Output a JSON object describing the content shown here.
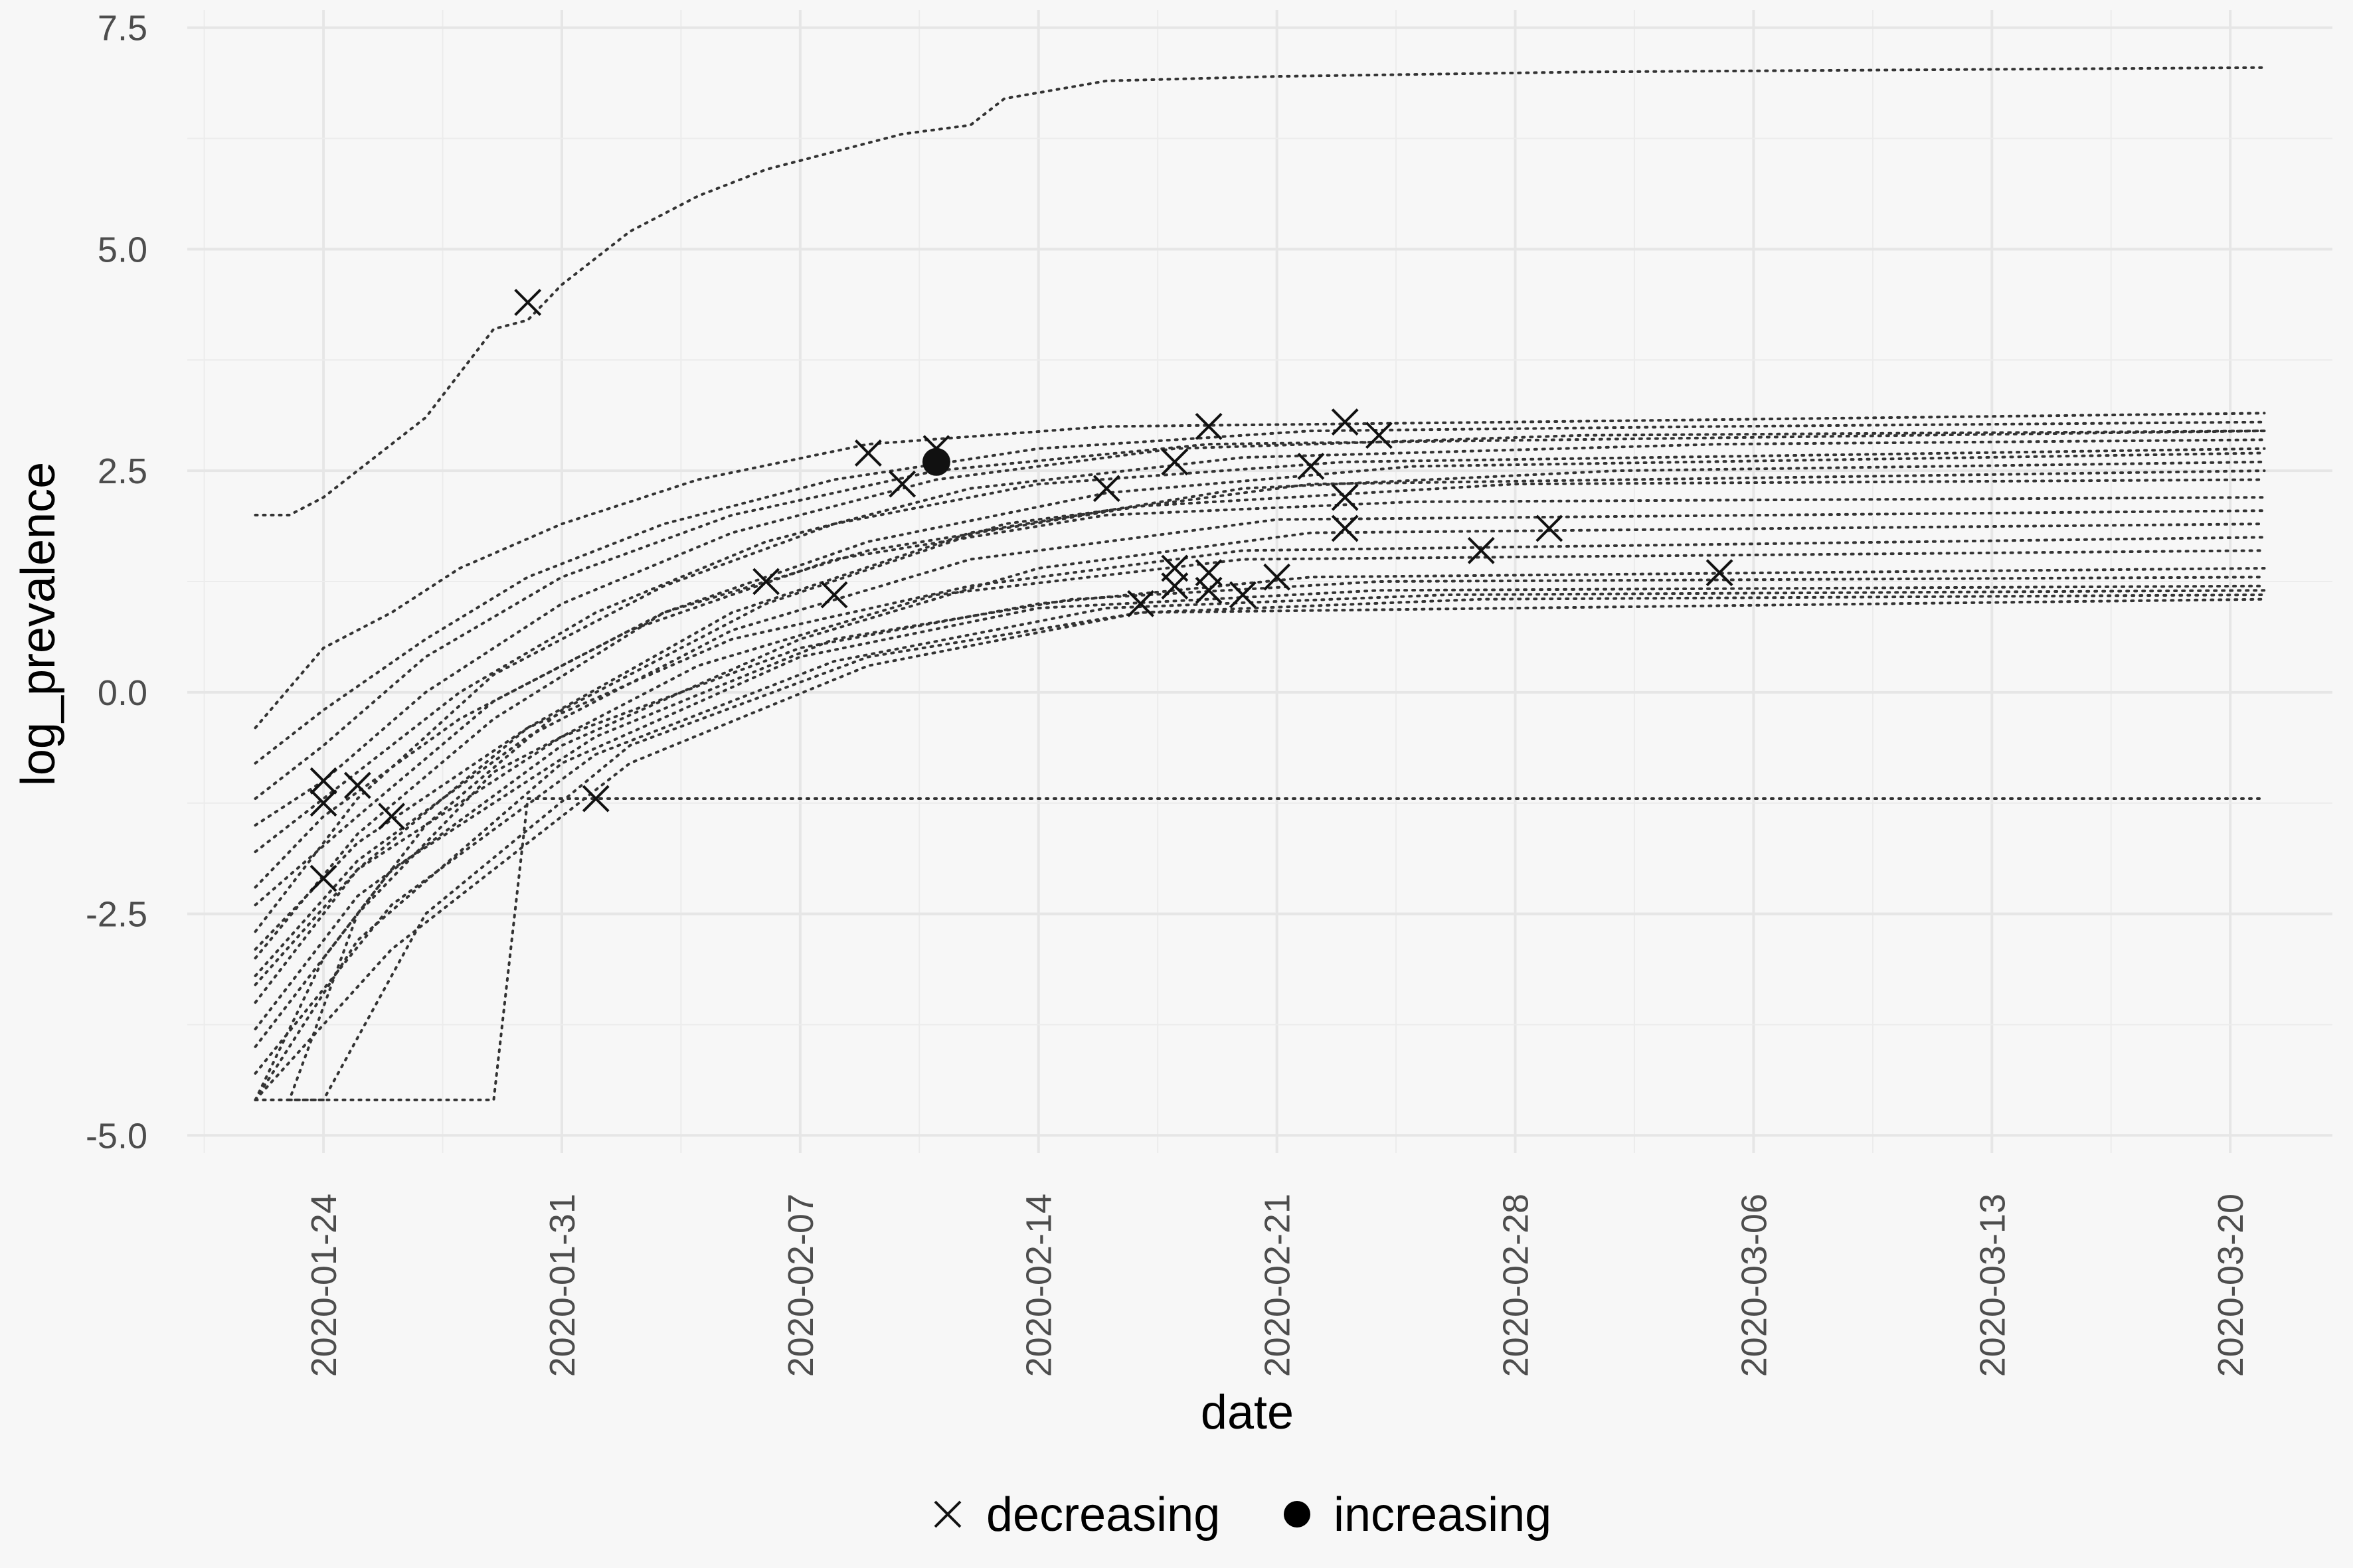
{
  "chart_data": {
    "type": "scatter",
    "xlabel": "date",
    "ylabel": "log_prevalence",
    "xlim": [
      "2020-01-20",
      "2020-03-23"
    ],
    "ylim": [
      -5.2,
      7.7
    ],
    "x_ticks": [
      "2020-01-24",
      "2020-01-31",
      "2020-02-07",
      "2020-02-14",
      "2020-02-21",
      "2020-02-28",
      "2020-03-06",
      "2020-03-13",
      "2020-03-20"
    ],
    "y_ticks": [
      {
        "value": -5.0,
        "label": "-5.0"
      },
      {
        "value": -2.5,
        "label": "-2.5"
      },
      {
        "value": 0.0,
        "label": "0.0"
      },
      {
        "value": 2.5,
        "label": "2.5"
      },
      {
        "value": 5.0,
        "label": "5.0"
      },
      {
        "value": 7.5,
        "label": "7.5"
      }
    ],
    "grid": true,
    "legend": {
      "position": "bottom",
      "entries": [
        {
          "label": "decreasing",
          "shape": "cross"
        },
        {
          "label": "increasing",
          "shape": "dot"
        }
      ]
    },
    "line_color": "#333333",
    "point_color": "#111111",
    "lines": [
      {
        "points": [
          [
            "2020-01-22",
            2.0
          ],
          [
            "2020-01-23",
            2.0
          ],
          [
            "2020-01-24",
            2.2
          ],
          [
            "2020-01-25",
            2.5
          ],
          [
            "2020-01-26",
            2.8
          ],
          [
            "2020-01-27",
            3.1
          ],
          [
            "2020-01-28",
            3.6
          ],
          [
            "2020-01-29",
            4.1
          ],
          [
            "2020-01-30",
            4.2
          ],
          [
            "2020-01-31",
            4.6
          ],
          [
            "2020-02-02",
            5.2
          ],
          [
            "2020-02-04",
            5.6
          ],
          [
            "2020-02-06",
            5.9
          ],
          [
            "2020-02-08",
            6.1
          ],
          [
            "2020-02-10",
            6.3
          ],
          [
            "2020-02-12",
            6.4
          ],
          [
            "2020-02-13",
            6.7
          ],
          [
            "2020-02-16",
            6.9
          ],
          [
            "2020-02-21",
            6.95
          ],
          [
            "2020-03-01",
            7.0
          ],
          [
            "2020-03-21",
            7.05
          ]
        ]
      },
      {
        "points": [
          [
            "2020-01-22",
            -4.6
          ],
          [
            "2020-01-24",
            -4.6
          ],
          [
            "2020-01-29",
            -4.6
          ],
          [
            "2020-01-30",
            -1.2
          ],
          [
            "2020-02-15",
            -1.2
          ],
          [
            "2020-03-21",
            -1.2
          ]
        ]
      },
      {
        "points": [
          [
            "2020-01-22",
            -0.4
          ],
          [
            "2020-01-24",
            0.5
          ],
          [
            "2020-01-26",
            0.9
          ],
          [
            "2020-01-28",
            1.4
          ],
          [
            "2020-01-31",
            1.9
          ],
          [
            "2020-02-04",
            2.4
          ],
          [
            "2020-02-09",
            2.8
          ],
          [
            "2020-02-16",
            3.0
          ],
          [
            "2020-02-28",
            3.05
          ],
          [
            "2020-03-21",
            3.15
          ]
        ]
      },
      {
        "points": [
          [
            "2020-01-22",
            -0.8
          ],
          [
            "2020-01-24",
            -0.2
          ],
          [
            "2020-01-27",
            0.6
          ],
          [
            "2020-01-30",
            1.3
          ],
          [
            "2020-02-03",
            1.9
          ],
          [
            "2020-02-08",
            2.4
          ],
          [
            "2020-02-14",
            2.75
          ],
          [
            "2020-02-22",
            2.95
          ],
          [
            "2020-03-05",
            3.0
          ],
          [
            "2020-03-21",
            3.05
          ]
        ]
      },
      {
        "points": [
          [
            "2020-01-22",
            -1.5
          ],
          [
            "2020-01-24",
            -1.0
          ],
          [
            "2020-01-27",
            0.0
          ],
          [
            "2020-01-31",
            1.0
          ],
          [
            "2020-02-05",
            1.8
          ],
          [
            "2020-02-11",
            2.4
          ],
          [
            "2020-02-18",
            2.75
          ],
          [
            "2020-03-01",
            2.9
          ],
          [
            "2020-03-21",
            2.95
          ]
        ]
      },
      {
        "points": [
          [
            "2020-01-22",
            -1.8
          ],
          [
            "2020-01-24",
            -1.2
          ],
          [
            "2020-01-28",
            0.0
          ],
          [
            "2020-02-01",
            0.9
          ],
          [
            "2020-02-06",
            1.7
          ],
          [
            "2020-02-12",
            2.3
          ],
          [
            "2020-02-20",
            2.65
          ],
          [
            "2020-03-05",
            2.8
          ],
          [
            "2020-03-21",
            2.85
          ]
        ]
      },
      {
        "points": [
          [
            "2020-01-22",
            -2.7
          ],
          [
            "2020-01-25",
            -1.2
          ],
          [
            "2020-01-29",
            0.2
          ],
          [
            "2020-02-03",
            1.2
          ],
          [
            "2020-02-08",
            1.9
          ],
          [
            "2020-02-14",
            2.35
          ],
          [
            "2020-02-23",
            2.6
          ],
          [
            "2020-03-21",
            2.75
          ]
        ]
      },
      {
        "points": [
          [
            "2020-01-22",
            -3.0
          ],
          [
            "2020-01-25",
            -1.6
          ],
          [
            "2020-01-29",
            -0.3
          ],
          [
            "2020-02-03",
            0.9
          ],
          [
            "2020-02-09",
            1.7
          ],
          [
            "2020-02-16",
            2.25
          ],
          [
            "2020-02-25",
            2.55
          ],
          [
            "2020-03-21",
            2.7
          ]
        ]
      },
      {
        "points": [
          [
            "2020-01-22",
            -3.5
          ],
          [
            "2020-01-25",
            -2.0
          ],
          [
            "2020-01-30",
            -0.4
          ],
          [
            "2020-02-05",
            0.9
          ],
          [
            "2020-02-12",
            1.8
          ],
          [
            "2020-02-20",
            2.3
          ],
          [
            "2020-03-02",
            2.5
          ],
          [
            "2020-03-21",
            2.6
          ]
        ]
      },
      {
        "points": [
          [
            "2020-01-22",
            -4.6
          ],
          [
            "2020-01-24",
            -3.0
          ],
          [
            "2020-01-27",
            -1.5
          ],
          [
            "2020-01-31",
            -0.2
          ],
          [
            "2020-02-06",
            1.0
          ],
          [
            "2020-02-13",
            1.9
          ],
          [
            "2020-02-22",
            2.35
          ],
          [
            "2020-03-21",
            2.5
          ]
        ]
      },
      {
        "points": [
          [
            "2020-01-22",
            -2.2
          ],
          [
            "2020-01-24",
            -1.4
          ],
          [
            "2020-01-28",
            -0.3
          ],
          [
            "2020-02-02",
            0.7
          ],
          [
            "2020-02-08",
            1.5
          ],
          [
            "2020-02-16",
            2.0
          ],
          [
            "2020-02-25",
            2.15
          ],
          [
            "2020-03-21",
            2.2
          ]
        ]
      },
      {
        "points": [
          [
            "2020-01-22",
            -3.2
          ],
          [
            "2020-01-25",
            -1.9
          ],
          [
            "2020-01-30",
            -0.5
          ],
          [
            "2020-02-05",
            0.7
          ],
          [
            "2020-02-12",
            1.5
          ],
          [
            "2020-02-21",
            1.95
          ],
          [
            "2020-03-21",
            2.05
          ]
        ]
      },
      {
        "points": [
          [
            "2020-01-22",
            -3.8
          ],
          [
            "2020-01-25",
            -2.3
          ],
          [
            "2020-01-31",
            -0.6
          ],
          [
            "2020-02-07",
            0.6
          ],
          [
            "2020-02-14",
            1.4
          ],
          [
            "2020-02-22",
            1.8
          ],
          [
            "2020-03-21",
            1.9
          ]
        ]
      },
      {
        "points": [
          [
            "2020-01-22",
            -2.9
          ],
          [
            "2020-01-25",
            -1.7
          ],
          [
            "2020-01-30",
            -0.4
          ],
          [
            "2020-02-05",
            0.6
          ],
          [
            "2020-02-12",
            1.2
          ],
          [
            "2020-02-20",
            1.6
          ],
          [
            "2020-03-21",
            1.75
          ]
        ]
      },
      {
        "points": [
          [
            "2020-01-22",
            -4.6
          ],
          [
            "2020-01-23",
            -4.6
          ],
          [
            "2020-01-25",
            -2.5
          ],
          [
            "2020-01-29",
            -0.9
          ],
          [
            "2020-02-04",
            0.3
          ],
          [
            "2020-02-11",
            1.1
          ],
          [
            "2020-02-20",
            1.5
          ],
          [
            "2020-03-21",
            1.6
          ]
        ]
      },
      {
        "points": [
          [
            "2020-01-22",
            -3.3
          ],
          [
            "2020-01-25",
            -2.0
          ],
          [
            "2020-01-31",
            -0.5
          ],
          [
            "2020-02-07",
            0.5
          ],
          [
            "2020-02-14",
            1.0
          ],
          [
            "2020-02-22",
            1.3
          ],
          [
            "2020-03-21",
            1.4
          ]
        ]
      },
      {
        "points": [
          [
            "2020-01-22",
            -4.0
          ],
          [
            "2020-01-26",
            -2.0
          ],
          [
            "2020-02-01",
            -0.5
          ],
          [
            "2020-02-08",
            0.6
          ],
          [
            "2020-02-15",
            1.05
          ],
          [
            "2020-02-24",
            1.25
          ],
          [
            "2020-03-21",
            1.3
          ]
        ]
      },
      {
        "points": [
          [
            "2020-01-22",
            -4.6
          ],
          [
            "2020-01-25",
            -2.8
          ],
          [
            "2020-01-31",
            -0.8
          ],
          [
            "2020-02-07",
            0.4
          ],
          [
            "2020-02-14",
            0.95
          ],
          [
            "2020-02-24",
            1.15
          ],
          [
            "2020-03-21",
            1.2
          ]
        ]
      },
      {
        "points": [
          [
            "2020-01-22",
            -4.3
          ],
          [
            "2020-01-26",
            -2.4
          ],
          [
            "2020-02-01",
            -0.7
          ],
          [
            "2020-02-08",
            0.35
          ],
          [
            "2020-02-16",
            0.95
          ],
          [
            "2020-02-26",
            1.1
          ],
          [
            "2020-03-21",
            1.15
          ]
        ]
      },
      {
        "points": [
          [
            "2020-01-22",
            -4.6
          ],
          [
            "2020-01-26",
            -2.9
          ],
          [
            "2020-02-02",
            -0.8
          ],
          [
            "2020-02-09",
            0.3
          ],
          [
            "2020-02-17",
            0.9
          ],
          [
            "2020-02-27",
            1.05
          ],
          [
            "2020-03-21",
            1.1
          ]
        ]
      },
      {
        "points": [
          [
            "2020-01-23",
            -4.6
          ],
          [
            "2020-01-24",
            -4.6
          ],
          [
            "2020-01-27",
            -2.5
          ],
          [
            "2020-02-02",
            -0.6
          ],
          [
            "2020-02-09",
            0.4
          ],
          [
            "2020-02-17",
            0.9
          ],
          [
            "2020-03-21",
            1.05
          ]
        ]
      },
      {
        "points": [
          [
            "2020-01-22",
            -2.4
          ],
          [
            "2020-01-25",
            -1.4
          ],
          [
            "2020-01-29",
            -0.1
          ],
          [
            "2020-02-03",
            0.9
          ],
          [
            "2020-02-09",
            1.6
          ],
          [
            "2020-02-17",
            2.1
          ],
          [
            "2020-02-28",
            2.35
          ],
          [
            "2020-03-21",
            2.4
          ]
        ]
      },
      {
        "points": [
          [
            "2020-01-22",
            -1.2
          ],
          [
            "2020-01-24",
            -0.6
          ],
          [
            "2020-01-27",
            0.4
          ],
          [
            "2020-01-31",
            1.3
          ],
          [
            "2020-02-05",
            2.0
          ],
          [
            "2020-02-11",
            2.5
          ],
          [
            "2020-02-19",
            2.8
          ],
          [
            "2020-03-21",
            2.95
          ]
        ]
      }
    ],
    "points": {
      "decreasing": [
        [
          "2020-01-24",
          -1.0
        ],
        [
          "2020-01-24",
          -1.25
        ],
        [
          "2020-01-24",
          -2.1
        ],
        [
          "2020-01-25",
          -1.05
        ],
        [
          "2020-01-26",
          -1.4
        ],
        [
          "2020-01-30",
          4.4
        ],
        [
          "2020-02-01",
          -1.2
        ],
        [
          "2020-02-06",
          1.25
        ],
        [
          "2020-02-08",
          1.1
        ],
        [
          "2020-02-09",
          2.7
        ],
        [
          "2020-02-10",
          2.35
        ],
        [
          "2020-02-11",
          2.75
        ],
        [
          "2020-02-16",
          2.3
        ],
        [
          "2020-02-17",
          1.0
        ],
        [
          "2020-02-18",
          2.6
        ],
        [
          "2020-02-18",
          1.4
        ],
        [
          "2020-02-18",
          1.2
        ],
        [
          "2020-02-19",
          3.0
        ],
        [
          "2020-02-19",
          1.35
        ],
        [
          "2020-02-19",
          1.15
        ],
        [
          "2020-02-20",
          1.1
        ],
        [
          "2020-02-21",
          1.3
        ],
        [
          "2020-02-22",
          2.55
        ],
        [
          "2020-02-23",
          3.05
        ],
        [
          "2020-02-23",
          2.2
        ],
        [
          "2020-02-23",
          1.85
        ],
        [
          "2020-02-24",
          2.9
        ],
        [
          "2020-02-27",
          1.6
        ],
        [
          "2020-02-29",
          1.85
        ],
        [
          "2020-03-05",
          1.35
        ]
      ],
      "increasing": [
        [
          "2020-02-11",
          2.6
        ]
      ]
    }
  }
}
